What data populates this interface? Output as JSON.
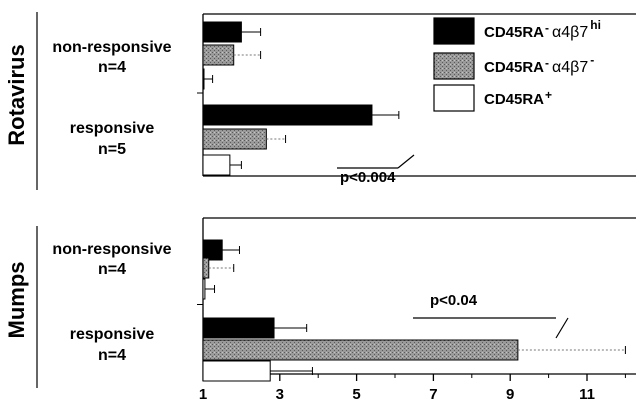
{
  "chart_data": {
    "type": "bar",
    "orientation": "horizontal",
    "x_ticks": [
      1,
      3,
      5,
      7,
      9,
      11
    ],
    "xlim": [
      1,
      12.2
    ],
    "series_styles": {
      "hi": {
        "fill": "#000000"
      },
      "neg": {
        "fill": "#8a8a8a"
      },
      "pos": {
        "fill": "#ffffff"
      }
    },
    "legend": {
      "placement": "top-right",
      "entries": [
        {
          "key": "hi",
          "label": "CD45RA",
          "sup1": "-",
          "greek": "α4β7",
          "sup2": "hi"
        },
        {
          "key": "neg",
          "label": "CD45RA",
          "sup1": "-",
          "greek": "α4β7",
          "sup2": "-"
        },
        {
          "key": "pos",
          "label": "CD45RA",
          "sup1": "+",
          "greek": "",
          "sup2": ""
        }
      ]
    },
    "panels": [
      {
        "title": "Rotavirus",
        "groups": [
          {
            "name": "non-responsive",
            "n": "n=4",
            "bars": [
              {
                "key": "hi",
                "value": 2.0,
                "err": 0.5
              },
              {
                "key": "neg",
                "value": 1.8,
                "err": 0.7
              },
              {
                "key": "pos",
                "value": 1.0,
                "err": 0.25
              }
            ]
          },
          {
            "name": "responsive",
            "n": "n=5",
            "bars": [
              {
                "key": "hi",
                "value": 5.4,
                "err": 0.7
              },
              {
                "key": "neg",
                "value": 2.65,
                "err": 0.5
              },
              {
                "key": "pos",
                "value": 1.7,
                "err": 0.3
              }
            ]
          }
        ],
        "annotation": "p<0.004"
      },
      {
        "title": "Mumps",
        "groups": [
          {
            "name": "non-responsive",
            "n": "n=4",
            "bars": [
              {
                "key": "hi",
                "value": 1.5,
                "err": 0.45
              },
              {
                "key": "neg",
                "value": 1.15,
                "err": 0.65
              },
              {
                "key": "pos",
                "value": 1.05,
                "err": 0.25
              }
            ]
          },
          {
            "name": "responsive",
            "n": "n=4",
            "bars": [
              {
                "key": "hi",
                "value": 2.85,
                "err": 0.85
              },
              {
                "key": "neg",
                "value": 9.2,
                "err": 2.8
              },
              {
                "key": "pos",
                "value": 2.75,
                "err": 1.1
              }
            ]
          }
        ],
        "annotation": "p<0.04"
      }
    ]
  }
}
